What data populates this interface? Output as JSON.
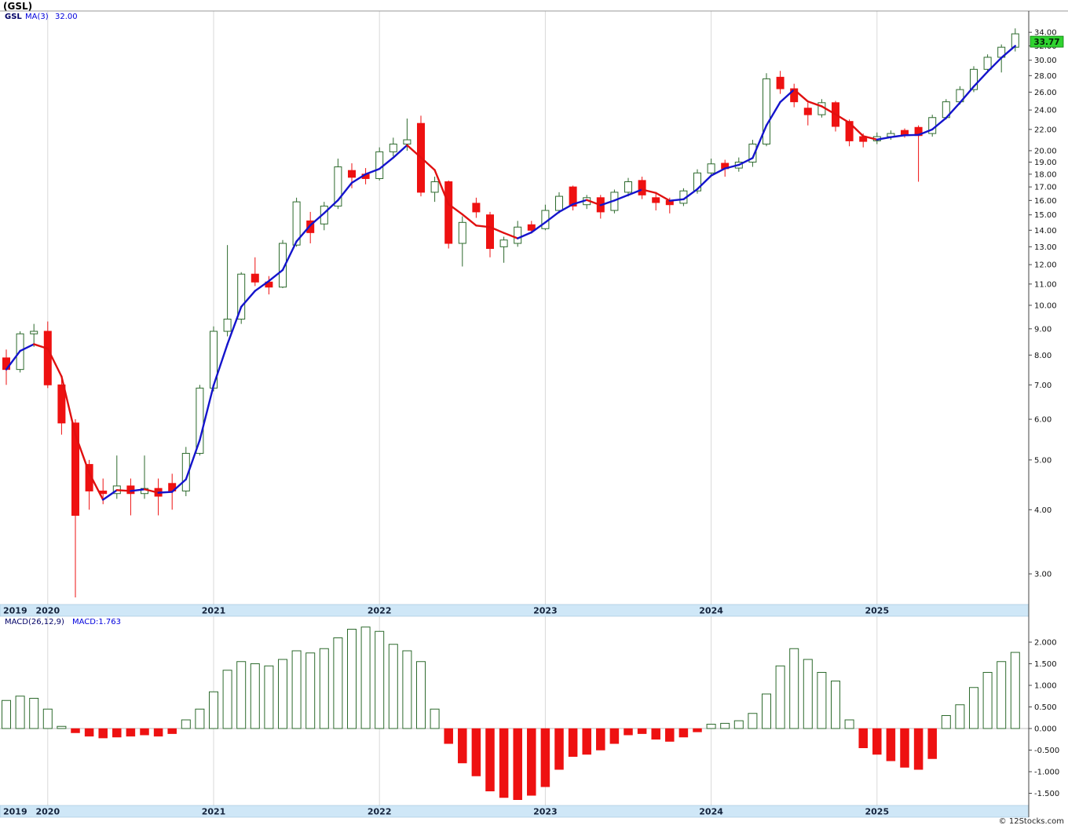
{
  "header": {
    "title": "(GSL)"
  },
  "legend": {
    "symbol": "GSL",
    "ma_label": "MA(3)",
    "ma_value": "32.00"
  },
  "price_panel": {
    "current_price_label": "33.77",
    "axis_ticks": [
      34,
      32,
      30,
      28,
      26,
      24,
      22,
      20,
      19,
      18,
      17,
      16,
      15,
      14,
      13,
      12,
      11,
      10,
      9,
      8,
      7,
      6,
      5,
      4,
      3
    ]
  },
  "macd_panel": {
    "label": "MACD(26,12,9)",
    "value_label": "MACD:1.763",
    "axis_ticks": [
      2.0,
      1.5,
      1.0,
      0.5,
      0.0,
      -0.5,
      -1.0,
      -1.5
    ]
  },
  "x_axis": {
    "years": [
      "2019",
      "2020",
      "2021",
      "2022",
      "2023",
      "2024",
      "2025"
    ]
  },
  "footer": {
    "credit": "© 12Stocks.com"
  },
  "colors": {
    "up_fill": "#ffffff",
    "up_stroke": "#2d6a2d",
    "down": "#ee1111",
    "ma_up": "#1414cc",
    "ma_down": "#e01010",
    "band": "#cfe7f7",
    "band_border": "#9fc2da",
    "grid": "#d9d9d9",
    "badge": "#2fd32f",
    "axis": "#444444"
  },
  "chart_data": {
    "type": "candlestick",
    "symbol": "GSL",
    "interval": "monthly",
    "price_scale": "log",
    "price_axis_range": [
      2.6,
      35.5
    ],
    "ma_period": 3,
    "ma_current": 32.0,
    "last_price": 33.77,
    "months": [
      "2019-10",
      "2019-11",
      "2019-12",
      "2020-01",
      "2020-02",
      "2020-03",
      "2020-04",
      "2020-05",
      "2020-06",
      "2020-07",
      "2020-08",
      "2020-09",
      "2020-10",
      "2020-11",
      "2020-12",
      "2021-01",
      "2021-02",
      "2021-03",
      "2021-04",
      "2021-05",
      "2021-06",
      "2021-07",
      "2021-08",
      "2021-09",
      "2021-10",
      "2021-11",
      "2021-12",
      "2022-01",
      "2022-02",
      "2022-03",
      "2022-04",
      "2022-05",
      "2022-06",
      "2022-07",
      "2022-08",
      "2022-09",
      "2022-10",
      "2022-11",
      "2022-12",
      "2023-01",
      "2023-02",
      "2023-03",
      "2023-04",
      "2023-05",
      "2023-06",
      "2023-07",
      "2023-08",
      "2023-09",
      "2023-10",
      "2023-11",
      "2023-12",
      "2024-01",
      "2024-02",
      "2024-03",
      "2024-04",
      "2024-05",
      "2024-06",
      "2024-07",
      "2024-08",
      "2024-09",
      "2024-10",
      "2024-11",
      "2024-12",
      "2025-01",
      "2025-02",
      "2025-03",
      "2025-04",
      "2025-05",
      "2025-06",
      "2025-07",
      "2025-08",
      "2025-09",
      "2025-10",
      "2025-11"
    ],
    "ohlc": [
      [
        7.9,
        8.2,
        7.0,
        7.5
      ],
      [
        7.5,
        8.9,
        7.4,
        8.8
      ],
      [
        8.8,
        9.2,
        8.3,
        8.9
      ],
      [
        8.9,
        9.3,
        6.9,
        7.0
      ],
      [
        7.0,
        7.2,
        5.6,
        5.9
      ],
      [
        5.9,
        6.0,
        2.7,
        3.9
      ],
      [
        4.9,
        5.0,
        4.0,
        4.35
      ],
      [
        4.35,
        4.6,
        4.1,
        4.3
      ],
      [
        4.3,
        5.1,
        4.2,
        4.45
      ],
      [
        4.45,
        4.6,
        3.9,
        4.3
      ],
      [
        4.3,
        5.1,
        4.2,
        4.4
      ],
      [
        4.4,
        4.6,
        3.9,
        4.25
      ],
      [
        4.5,
        4.7,
        4.0,
        4.35
      ],
      [
        4.35,
        5.3,
        4.25,
        5.15
      ],
      [
        5.15,
        7.0,
        5.1,
        6.9
      ],
      [
        6.9,
        9.1,
        6.8,
        8.9
      ],
      [
        8.9,
        13.1,
        8.7,
        9.4
      ],
      [
        9.4,
        11.6,
        9.2,
        11.5
      ],
      [
        11.5,
        12.4,
        10.9,
        11.1
      ],
      [
        11.1,
        11.4,
        10.5,
        10.85
      ],
      [
        10.85,
        13.4,
        10.8,
        13.2
      ],
      [
        13.1,
        16.2,
        13.0,
        15.9
      ],
      [
        14.6,
        15.2,
        13.2,
        13.85
      ],
      [
        14.4,
        15.9,
        14.0,
        15.6
      ],
      [
        15.6,
        19.3,
        15.4,
        18.6
      ],
      [
        18.3,
        18.9,
        16.9,
        17.75
      ],
      [
        18.0,
        18.5,
        17.2,
        17.65
      ],
      [
        17.65,
        20.3,
        17.5,
        19.9
      ],
      [
        19.9,
        21.2,
        19.5,
        20.6
      ],
      [
        20.6,
        23.1,
        20.0,
        21.0
      ],
      [
        22.6,
        23.4,
        16.3,
        16.6
      ],
      [
        16.6,
        17.8,
        15.9,
        17.4
      ],
      [
        17.4,
        17.5,
        12.9,
        13.2
      ],
      [
        13.2,
        14.9,
        11.9,
        14.5
      ],
      [
        15.8,
        16.2,
        14.8,
        15.2
      ],
      [
        15.0,
        15.2,
        12.4,
        12.9
      ],
      [
        13.0,
        13.6,
        12.1,
        13.4
      ],
      [
        13.2,
        14.6,
        13.0,
        14.2
      ],
      [
        14.35,
        14.6,
        13.8,
        14.0
      ],
      [
        14.1,
        15.7,
        14.0,
        15.3
      ],
      [
        15.3,
        16.6,
        15.1,
        16.3
      ],
      [
        17.0,
        17.1,
        15.3,
        15.6
      ],
      [
        15.7,
        16.4,
        15.4,
        16.2
      ],
      [
        16.2,
        16.4,
        14.75,
        15.2
      ],
      [
        15.3,
        16.8,
        15.1,
        16.6
      ],
      [
        16.6,
        17.7,
        16.3,
        17.4
      ],
      [
        17.5,
        17.8,
        16.1,
        16.4
      ],
      [
        16.2,
        16.6,
        15.3,
        15.85
      ],
      [
        16.0,
        16.2,
        15.1,
        15.7
      ],
      [
        15.8,
        16.9,
        15.6,
        16.7
      ],
      [
        16.7,
        18.4,
        16.5,
        18.1
      ],
      [
        18.1,
        19.3,
        17.8,
        18.85
      ],
      [
        18.9,
        19.2,
        17.8,
        18.45
      ],
      [
        18.5,
        19.4,
        18.2,
        19.0
      ],
      [
        19.0,
        21.0,
        18.6,
        20.6
      ],
      [
        20.6,
        28.3,
        20.4,
        27.6
      ],
      [
        27.8,
        28.6,
        25.8,
        26.4
      ],
      [
        26.4,
        27.0,
        24.3,
        24.9
      ],
      [
        24.2,
        24.8,
        22.4,
        23.5
      ],
      [
        23.5,
        25.2,
        23.2,
        24.8
      ],
      [
        24.8,
        25.0,
        21.8,
        22.3
      ],
      [
        22.8,
        23.0,
        20.4,
        20.9
      ],
      [
        21.3,
        21.6,
        20.3,
        20.85
      ],
      [
        20.9,
        21.7,
        20.6,
        21.3
      ],
      [
        21.3,
        21.9,
        21.0,
        21.6
      ],
      [
        21.9,
        22.1,
        21.2,
        21.4
      ],
      [
        22.2,
        22.4,
        17.4,
        21.4
      ],
      [
        21.6,
        23.5,
        21.3,
        23.2
      ],
      [
        23.2,
        25.2,
        23.0,
        24.9
      ],
      [
        24.9,
        26.7,
        24.6,
        26.3
      ],
      [
        26.3,
        29.2,
        26.0,
        28.8
      ],
      [
        28.8,
        30.8,
        28.5,
        30.4
      ],
      [
        30.4,
        32.2,
        28.4,
        31.8
      ],
      [
        31.8,
        34.6,
        31.2,
        33.77
      ]
    ],
    "macd": {
      "params": [
        26,
        12,
        9
      ],
      "current": 1.763,
      "histogram": [
        0.65,
        0.75,
        0.7,
        0.45,
        0.05,
        -0.1,
        -0.18,
        -0.22,
        -0.2,
        -0.18,
        -0.15,
        -0.18,
        -0.12,
        0.2,
        0.45,
        0.85,
        1.35,
        1.55,
        1.5,
        1.45,
        1.6,
        1.8,
        1.75,
        1.85,
        2.1,
        2.3,
        2.35,
        2.25,
        1.95,
        1.8,
        1.55,
        0.45,
        -0.35,
        -0.8,
        -1.1,
        -1.45,
        -1.6,
        -1.65,
        -1.55,
        -1.35,
        -0.95,
        -0.65,
        -0.6,
        -0.5,
        -0.35,
        -0.15,
        -0.12,
        -0.25,
        -0.3,
        -0.2,
        -0.08,
        0.1,
        0.12,
        0.18,
        0.35,
        0.8,
        1.45,
        1.85,
        1.6,
        1.3,
        1.1,
        0.2,
        -0.45,
        -0.6,
        -0.75,
        -0.9,
        -0.95,
        -0.7,
        0.3,
        0.55,
        0.95,
        1.3,
        1.55,
        1.763
      ]
    }
  }
}
